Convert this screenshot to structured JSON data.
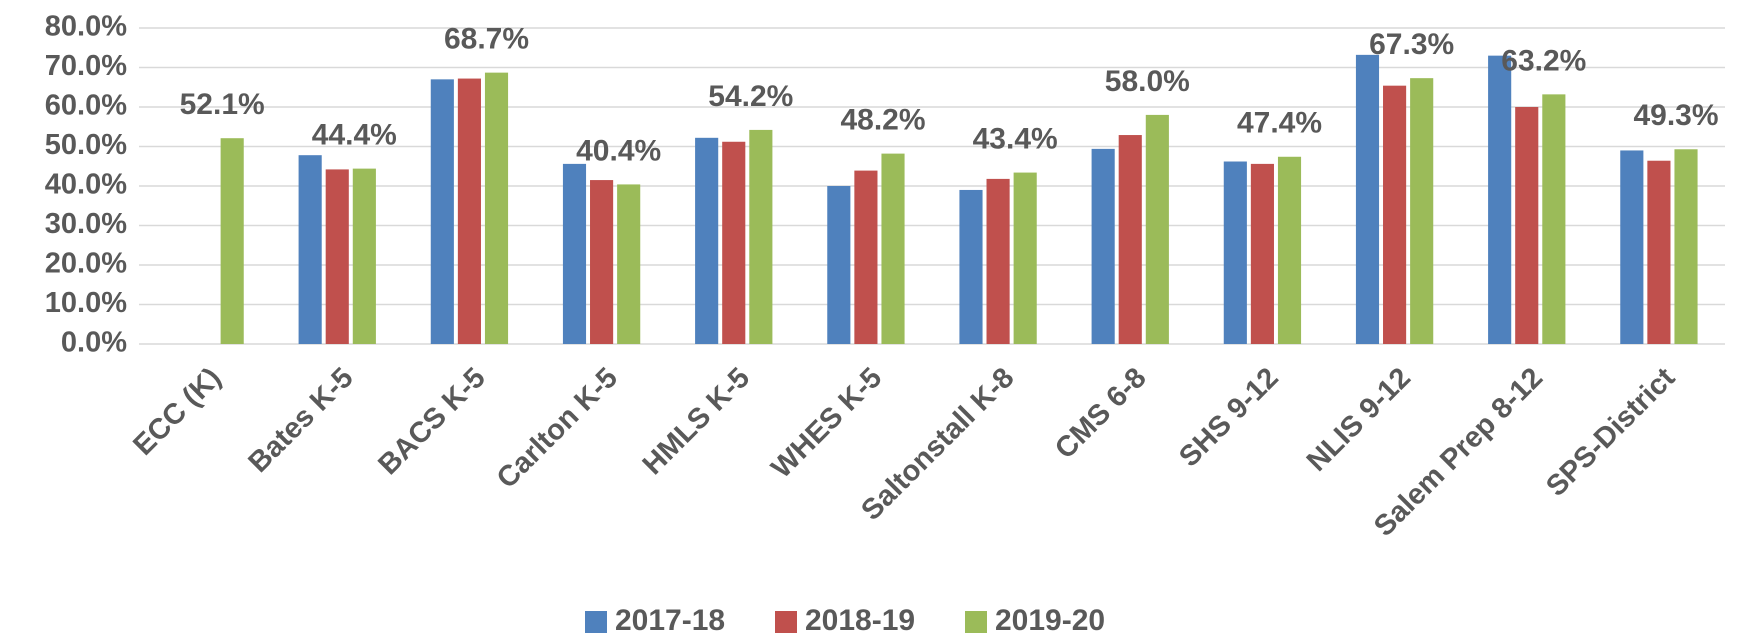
{
  "chart_data": {
    "type": "bar",
    "categories": [
      "ECC (K)",
      "Bates K-5",
      "BACS K-5",
      "Carlton K-5",
      "HMLS K-5",
      "WHES K-5",
      "Saltonstall K-8",
      "CMS 6-8",
      "SHS 9-12",
      "NLIS 9-12",
      "Salem Prep 8-12",
      "SPS-District"
    ],
    "series": [
      {
        "name": "2017-18",
        "color": "#4f81bd",
        "values": [
          null,
          47.8,
          67.0,
          45.6,
          52.2,
          40.0,
          39.0,
          49.4,
          46.2,
          73.2,
          73.0,
          49.0
        ]
      },
      {
        "name": "2018-19",
        "color": "#c0504d",
        "values": [
          null,
          44.2,
          67.2,
          41.5,
          51.2,
          43.9,
          41.8,
          52.9,
          45.6,
          65.4,
          60.0,
          46.4
        ]
      },
      {
        "name": "2019-20",
        "color": "#9bbb59",
        "values": [
          52.1,
          44.4,
          68.7,
          40.4,
          54.2,
          48.2,
          43.4,
          58.0,
          47.4,
          67.3,
          63.2,
          49.3
        ],
        "value_labels": [
          "52.1%",
          "44.4%",
          "68.7%",
          "40.4%",
          "54.2%",
          "48.2%",
          "43.4%",
          "58.0%",
          "47.4%",
          "67.3%",
          "63.2%",
          "49.3%"
        ]
      }
    ],
    "ylim": [
      0,
      80
    ],
    "yticks": [
      {
        "value": 0,
        "label": "0.0%"
      },
      {
        "value": 10,
        "label": "10.0%"
      },
      {
        "value": 20,
        "label": "20.0%"
      },
      {
        "value": 30,
        "label": "30.0%"
      },
      {
        "value": 40,
        "label": "40.0%"
      },
      {
        "value": 50,
        "label": "50.0%"
      },
      {
        "value": 60,
        "label": "60.0%"
      },
      {
        "value": 70,
        "label": "70.0%"
      },
      {
        "value": 80,
        "label": "80.0%"
      }
    ],
    "grid": true,
    "legend": "bottom"
  }
}
